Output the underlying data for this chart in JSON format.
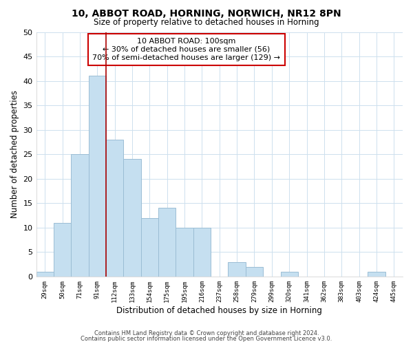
{
  "title": "10, ABBOT ROAD, HORNING, NORWICH, NR12 8PN",
  "subtitle": "Size of property relative to detached houses in Horning",
  "xlabel": "Distribution of detached houses by size in Horning",
  "ylabel": "Number of detached properties",
  "bar_color": "#c5dff0",
  "bar_edge_color": "#9bbdd4",
  "background_color": "#ffffff",
  "grid_color": "#cde0ee",
  "categories": [
    "29sqm",
    "50sqm",
    "71sqm",
    "91sqm",
    "112sqm",
    "133sqm",
    "154sqm",
    "175sqm",
    "195sqm",
    "216sqm",
    "237sqm",
    "258sqm",
    "279sqm",
    "299sqm",
    "320sqm",
    "341sqm",
    "362sqm",
    "383sqm",
    "403sqm",
    "424sqm",
    "445sqm"
  ],
  "values": [
    1,
    11,
    25,
    41,
    28,
    24,
    12,
    14,
    10,
    10,
    0,
    3,
    2,
    0,
    1,
    0,
    0,
    0,
    0,
    1,
    0
  ],
  "ylim": [
    0,
    50
  ],
  "yticks": [
    0,
    5,
    10,
    15,
    20,
    25,
    30,
    35,
    40,
    45,
    50
  ],
  "marker_color": "#aa0000",
  "annotation_title": "10 ABBOT ROAD: 100sqm",
  "annotation_line1": "← 30% of detached houses are smaller (56)",
  "annotation_line2": "70% of semi-detached houses are larger (129) →",
  "annotation_box_color": "#ffffff",
  "annotation_border_color": "#cc0000",
  "footer_line1": "Contains HM Land Registry data © Crown copyright and database right 2024.",
  "footer_line2": "Contains public sector information licensed under the Open Government Licence v3.0."
}
